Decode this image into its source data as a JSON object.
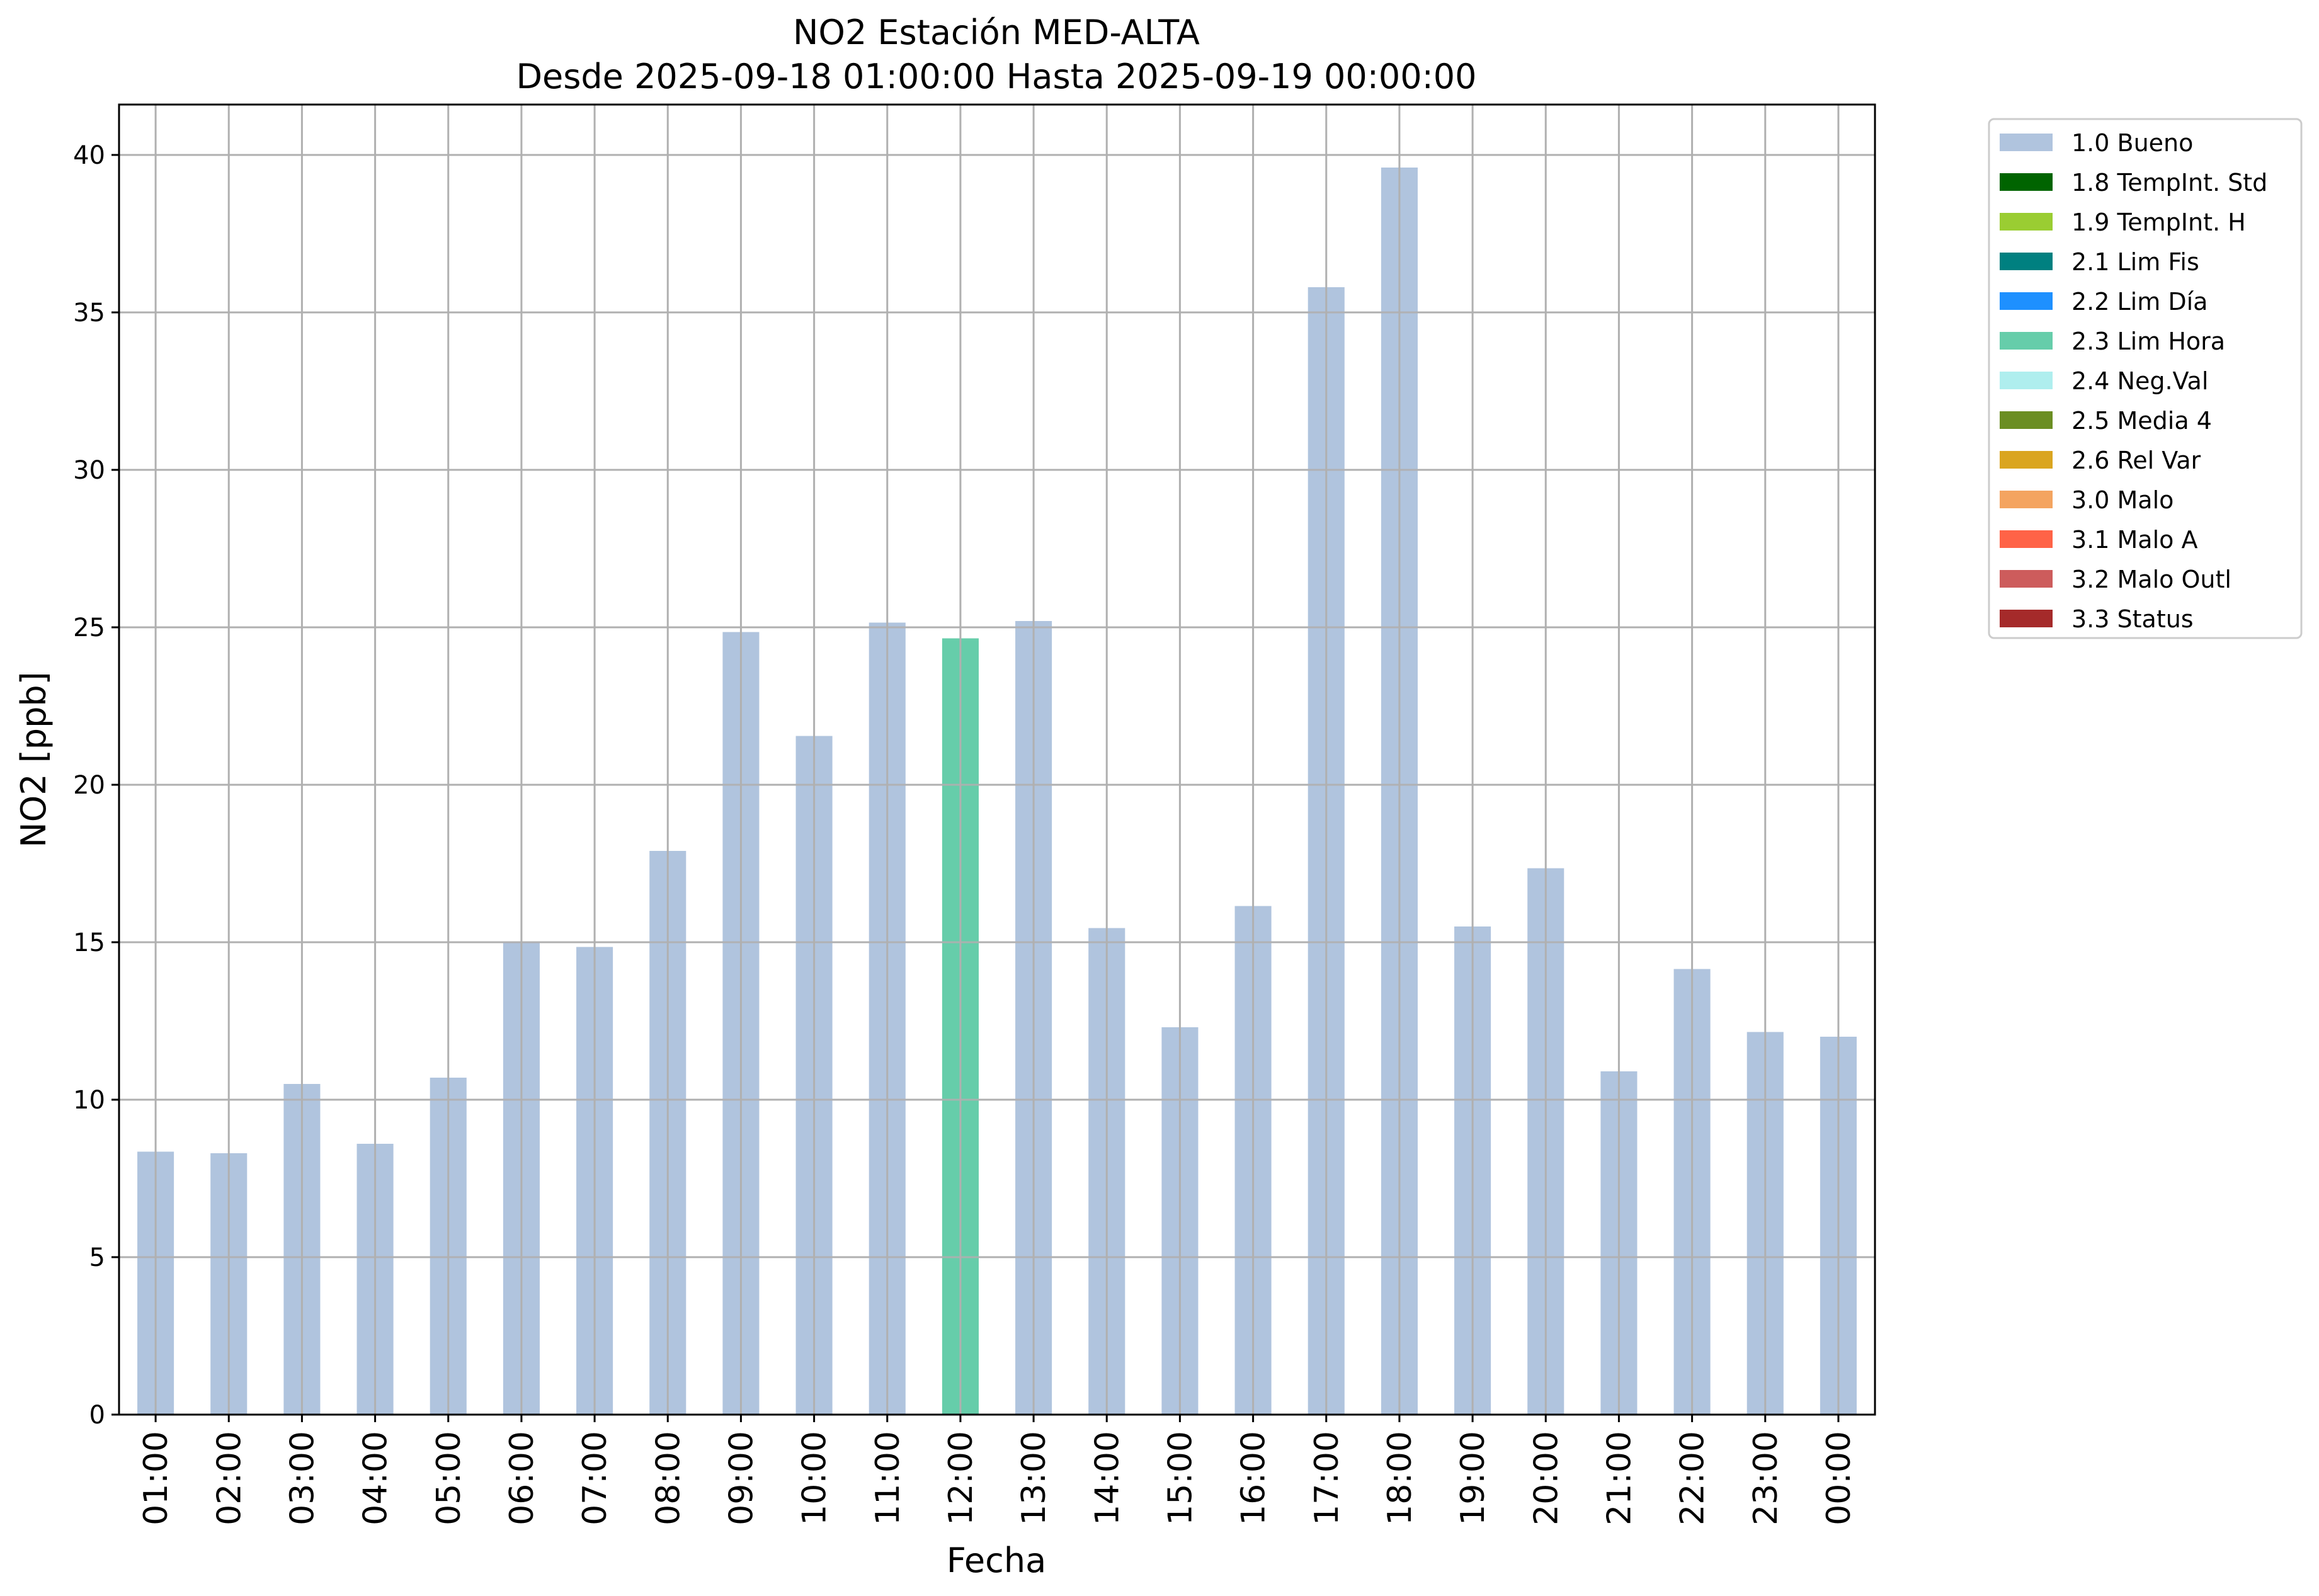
{
  "chart_data": {
    "type": "bar",
    "title": "NO2 Estación MED-ALTA",
    "subtitle": "Desde 2025-09-18 01:00:00 Hasta 2025-09-19 00:00:00",
    "xlabel": "Fecha",
    "ylabel": "NO2 [ppb]",
    "ylim": [
      0,
      41.6
    ],
    "yticks": [
      0,
      5,
      10,
      15,
      20,
      25,
      30,
      35,
      40
    ],
    "grid": true,
    "legend_position": "outside-top-right",
    "categories": [
      "01:00",
      "02:00",
      "03:00",
      "04:00",
      "05:00",
      "06:00",
      "07:00",
      "08:00",
      "09:00",
      "10:00",
      "11:00",
      "12:00",
      "13:00",
      "14:00",
      "15:00",
      "16:00",
      "17:00",
      "18:00",
      "19:00",
      "20:00",
      "21:00",
      "22:00",
      "23:00",
      "00:00"
    ],
    "values": [
      8.35,
      8.3,
      10.5,
      8.6,
      10.7,
      15.0,
      14.85,
      17.9,
      24.85,
      21.55,
      25.15,
      24.65,
      25.2,
      15.45,
      12.3,
      16.15,
      35.8,
      39.6,
      15.5,
      17.35,
      10.9,
      14.15,
      12.15,
      12.0
    ],
    "flags": [
      "1.0 Bueno",
      "1.0 Bueno",
      "1.0 Bueno",
      "1.0 Bueno",
      "1.0 Bueno",
      "1.0 Bueno",
      "1.0 Bueno",
      "1.0 Bueno",
      "1.0 Bueno",
      "1.0 Bueno",
      "1.0 Bueno",
      "2.3 Lim Hora",
      "1.0 Bueno",
      "1.0 Bueno",
      "1.0 Bueno",
      "1.0 Bueno",
      "1.0 Bueno",
      "1.0 Bueno",
      "1.0 Bueno",
      "1.0 Bueno",
      "1.0 Bueno",
      "1.0 Bueno",
      "1.0 Bueno",
      "1.0 Bueno"
    ],
    "legend": [
      {
        "label": "1.0 Bueno",
        "color": "#b0c4de"
      },
      {
        "label": "1.8 TempInt. Std",
        "color": "#006400"
      },
      {
        "label": "1.9 TempInt. H",
        "color": "#9acd32"
      },
      {
        "label": "2.1 Lim Fis",
        "color": "#008080"
      },
      {
        "label": "2.2 Lim Día",
        "color": "#1e90ff"
      },
      {
        "label": "2.3 Lim Hora",
        "color": "#66cdaa"
      },
      {
        "label": "2.4 Neg.Val",
        "color": "#afeeee"
      },
      {
        "label": "2.5 Media 4",
        "color": "#6b8e23"
      },
      {
        "label": "2.6 Rel Var",
        "color": "#daa520"
      },
      {
        "label": "3.0 Malo",
        "color": "#f4a460"
      },
      {
        "label": "3.1 Malo A",
        "color": "#ff6347"
      },
      {
        "label": "3.2 Malo Outl",
        "color": "#cd5c5c"
      },
      {
        "label": "3.3 Status",
        "color": "#a52a2a"
      }
    ]
  }
}
